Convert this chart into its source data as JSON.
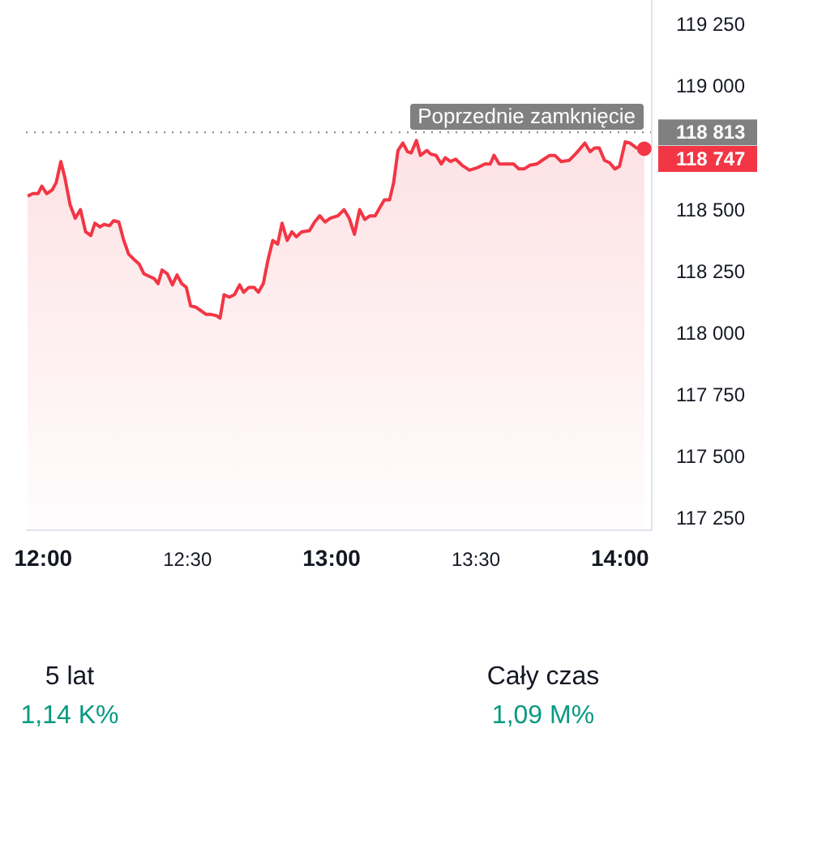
{
  "chart_data": {
    "type": "area",
    "x": [
      11.946,
      11.964,
      11.982,
      11.995,
      12.012,
      12.031,
      12.045,
      12.061,
      12.075,
      12.093,
      12.111,
      12.129,
      12.147,
      12.165,
      12.179,
      12.197,
      12.211,
      12.23,
      12.244,
      12.262,
      12.278,
      12.296,
      12.313,
      12.332,
      12.349,
      12.367,
      12.385,
      12.398,
      12.412,
      12.43,
      12.448,
      12.464,
      12.48,
      12.496,
      12.511,
      12.528,
      12.547,
      12.565,
      12.582,
      12.601,
      12.613,
      12.627,
      12.645,
      12.663,
      12.681,
      12.695,
      12.713,
      12.731,
      12.746,
      12.763,
      12.78,
      12.796,
      12.813,
      12.828,
      12.846,
      12.862,
      12.878,
      12.896,
      12.923,
      12.941,
      12.959,
      12.977,
      12.995,
      13.022,
      13.043,
      13.061,
      13.079,
      13.097,
      13.115,
      13.133,
      13.151,
      13.168,
      13.183,
      13.201,
      13.215,
      13.23,
      13.247,
      13.263,
      13.276,
      13.294,
      13.308,
      13.33,
      13.344,
      13.362,
      13.38,
      13.394,
      13.412,
      13.43,
      13.452,
      13.478,
      13.505,
      13.532,
      13.55,
      13.563,
      13.581,
      13.604,
      13.631,
      13.649,
      13.667,
      13.688,
      13.711,
      13.73,
      13.756,
      13.774,
      13.796,
      13.824,
      13.849,
      13.878,
      13.896,
      13.912,
      13.928,
      13.946,
      13.964,
      13.982,
      13.998,
      14.018,
      14.034,
      14.058,
      14.084
    ],
    "values": [
      118555,
      118565,
      118565,
      118595,
      118565,
      118580,
      118610,
      118695,
      118630,
      118520,
      118465,
      118500,
      118410,
      118395,
      118445,
      118430,
      118440,
      118435,
      118455,
      118450,
      118380,
      118320,
      118300,
      118280,
      118240,
      118230,
      118220,
      118200,
      118255,
      118240,
      118195,
      118235,
      118200,
      118185,
      118110,
      118105,
      118090,
      118075,
      118075,
      118070,
      118060,
      118155,
      118145,
      118155,
      118195,
      118165,
      118185,
      118185,
      118165,
      118200,
      118300,
      118375,
      118360,
      118445,
      118375,
      118410,
      118390,
      118410,
      118415,
      118450,
      118475,
      118450,
      118465,
      118475,
      118500,
      118465,
      118400,
      118500,
      118460,
      118475,
      118475,
      118510,
      118540,
      118540,
      118610,
      118740,
      118770,
      118735,
      118730,
      118780,
      118720,
      118740,
      118725,
      118720,
      118685,
      118710,
      118695,
      118705,
      118680,
      118660,
      118670,
      118685,
      118685,
      118720,
      118685,
      118685,
      118685,
      118665,
      118665,
      118680,
      118685,
      118700,
      118720,
      118720,
      118695,
      118700,
      118730,
      118770,
      118735,
      118750,
      118750,
      118700,
      118690,
      118665,
      118675,
      118775,
      118770,
      118750,
      118747
    ],
    "color": "#f23645",
    "xlim": [
      11.94,
      14.11
    ],
    "xticks": [
      {
        "value": 12,
        "label": "12:00"
      },
      {
        "value": 12.5,
        "label": "12:30"
      },
      {
        "value": 13,
        "label": "13:00"
      },
      {
        "value": 13.5,
        "label": "13:30"
      },
      {
        "value": 14,
        "label": "14:00"
      }
    ],
    "ylim": [
      117200,
      119350
    ],
    "yticks": [
      {
        "value": 117250,
        "label": "117 250"
      },
      {
        "value": 117500,
        "label": "117 500"
      },
      {
        "value": 117750,
        "label": "117 750"
      },
      {
        "value": 118000,
        "label": "118 000"
      },
      {
        "value": 118250,
        "label": "118 250"
      },
      {
        "value": 118500,
        "label": "118 500"
      },
      {
        "value": 118813,
        "label": "118 813"
      },
      {
        "value": 119000,
        "label": "119 000"
      },
      {
        "value": 119250,
        "label": "119 250"
      }
    ],
    "ref_lines": [
      {
        "axis": "y",
        "value": 118813,
        "label": "Poprzednie zamknięcie",
        "color": "#808080",
        "line_style": "dotted"
      }
    ],
    "annotations": [
      "5 lat",
      "1,14 K%",
      "Cały czas",
      "1,09 M%",
      {
        "text": "118 747",
        "x": 14.084,
        "y": 118747
      }
    ]
  }
}
